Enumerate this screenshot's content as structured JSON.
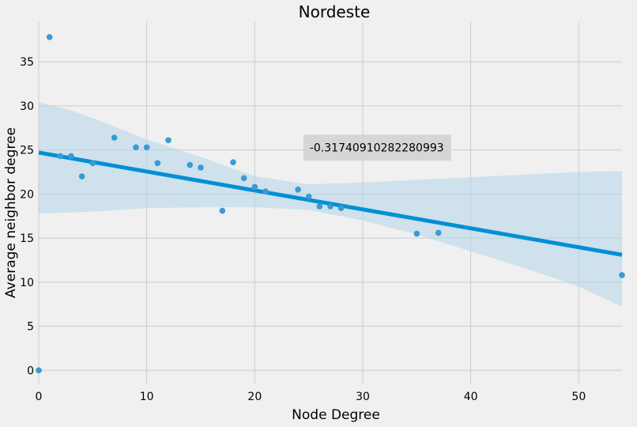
{
  "chart_data": {
    "type": "scatter",
    "title": "Nordeste",
    "xlabel": "Node Degree",
    "ylabel": "Average neighbor degree",
    "xlim": [
      0,
      54
    ],
    "ylim": [
      -1.5,
      39.5
    ],
    "xticks": [
      0,
      10,
      20,
      30,
      40,
      50
    ],
    "yticks": [
      0,
      5,
      10,
      15,
      20,
      25,
      30,
      35
    ],
    "grid": true,
    "colors": {
      "points": "#3a9ad2",
      "regression_line": "#008fd5",
      "confidence_band": "#b8d7ea",
      "background": "#f0f0f0",
      "grid": "#cbcbcb",
      "annotation_box": "#d3d3d3"
    },
    "points": [
      {
        "x": 0,
        "y": 0
      },
      {
        "x": 1,
        "y": 37.8
      },
      {
        "x": 2,
        "y": 24.3
      },
      {
        "x": 3,
        "y": 24.3
      },
      {
        "x": 4,
        "y": 22.0
      },
      {
        "x": 5,
        "y": 23.5
      },
      {
        "x": 7,
        "y": 26.4
      },
      {
        "x": 9,
        "y": 25.3
      },
      {
        "x": 10,
        "y": 25.3
      },
      {
        "x": 11,
        "y": 23.5
      },
      {
        "x": 12,
        "y": 26.1
      },
      {
        "x": 14,
        "y": 23.3
      },
      {
        "x": 15,
        "y": 23.0
      },
      {
        "x": 17,
        "y": 18.1
      },
      {
        "x": 18,
        "y": 23.6
      },
      {
        "x": 19,
        "y": 21.8
      },
      {
        "x": 20,
        "y": 20.8
      },
      {
        "x": 21,
        "y": 20.3
      },
      {
        "x": 24,
        "y": 20.5
      },
      {
        "x": 25,
        "y": 19.7
      },
      {
        "x": 26,
        "y": 18.6
      },
      {
        "x": 27,
        "y": 18.6
      },
      {
        "x": 28,
        "y": 18.4
      },
      {
        "x": 35,
        "y": 15.5
      },
      {
        "x": 37,
        "y": 15.6
      },
      {
        "x": 54,
        "y": 10.8
      }
    ],
    "regression": {
      "x": [
        0,
        54
      ],
      "y": [
        24.7,
        13.1
      ]
    },
    "confidence_band": {
      "x": [
        0,
        3,
        5,
        10,
        15,
        20,
        25,
        30,
        35,
        40,
        45,
        50,
        54
      ],
      "upper": [
        30.4,
        29.5,
        28.6,
        26.2,
        24.2,
        22.0,
        21.1,
        21.3,
        21.6,
        21.9,
        22.2,
        22.5,
        22.6
      ],
      "lower": [
        17.8,
        17.9,
        18.0,
        18.4,
        18.5,
        18.5,
        18.2,
        17.0,
        15.4,
        13.5,
        11.6,
        9.5,
        7.2
      ]
    },
    "annotation": {
      "text": "-0.31740910282280993",
      "x": 31.3,
      "y": 25.3
    }
  }
}
